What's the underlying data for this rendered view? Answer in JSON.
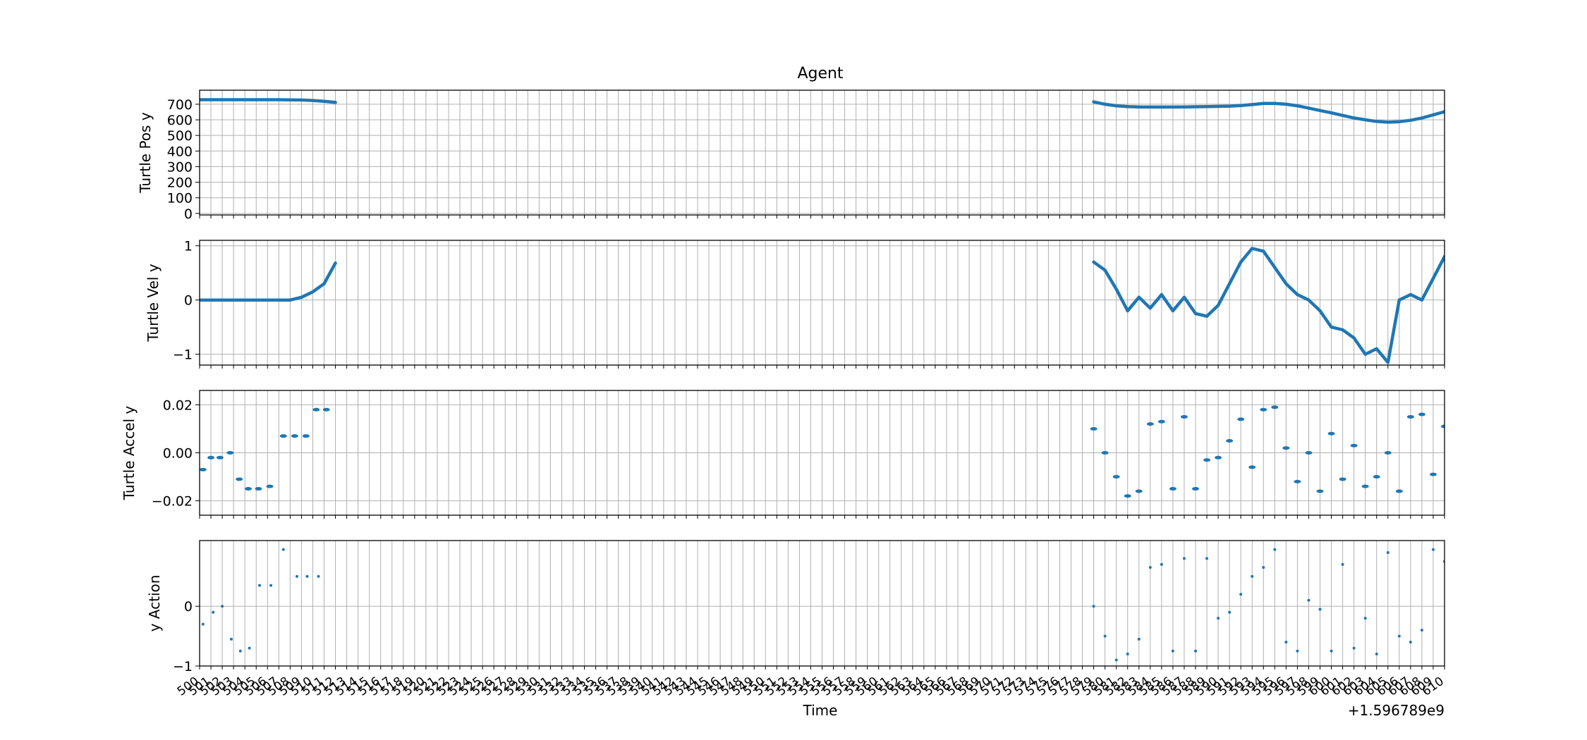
{
  "figure": {
    "title": "Agent",
    "xlabel": "Time",
    "x_offset_label": "+1.596789e9"
  },
  "chart_data": [
    {
      "type": "line",
      "ylabel": "Turtle Pos y",
      "xlim": [
        500,
        610
      ],
      "ylim": [
        -10,
        790
      ],
      "yticks": [
        0,
        100,
        200,
        300,
        400,
        500,
        600,
        700
      ],
      "ytick_labels": [
        "0",
        "100",
        "200",
        "300",
        "400",
        "500",
        "600",
        "700"
      ],
      "grid": true,
      "color": "#1f77b4",
      "segments": [
        {
          "x": [
            500,
            501,
            502,
            503,
            504,
            505,
            506,
            507,
            508,
            509,
            510,
            511,
            512
          ],
          "y": [
            729,
            729,
            729,
            729,
            729,
            729,
            729,
            729,
            728,
            727,
            724,
            719,
            712
          ]
        },
        {
          "x": [
            579,
            580,
            581,
            582,
            583,
            585,
            587,
            589,
            591,
            592,
            593,
            594,
            595,
            596,
            597,
            598,
            599,
            600,
            601,
            602,
            603,
            604,
            605,
            606,
            607,
            608,
            609,
            610
          ],
          "y": [
            715,
            700,
            690,
            685,
            683,
            682,
            683,
            685,
            688,
            692,
            698,
            705,
            705,
            700,
            690,
            675,
            660,
            645,
            628,
            612,
            600,
            590,
            585,
            588,
            597,
            612,
            632,
            652
          ]
        }
      ]
    },
    {
      "type": "line",
      "ylabel": "Turtle Vel y",
      "xlim": [
        500,
        610
      ],
      "ylim": [
        -1.2,
        1.1
      ],
      "yticks": [
        -1,
        0,
        1
      ],
      "ytick_labels": [
        "−1",
        "0",
        "1"
      ],
      "grid": true,
      "color": "#1f77b4",
      "segments": [
        {
          "x": [
            500,
            502,
            504,
            506,
            508,
            509,
            510,
            511,
            512
          ],
          "y": [
            0,
            0,
            0,
            0,
            0,
            0.05,
            0.15,
            0.3,
            0.68
          ]
        },
        {
          "x": [
            579,
            580,
            581,
            582,
            583,
            584,
            585,
            586,
            587,
            588,
            589,
            590,
            591,
            592,
            593,
            594,
            595,
            596,
            597,
            598,
            599,
            600,
            601,
            602,
            603,
            604,
            605,
            606,
            607,
            608,
            609,
            610
          ],
          "y": [
            0.7,
            0.55,
            0.2,
            -0.2,
            0.05,
            -0.15,
            0.1,
            -0.2,
            0.05,
            -0.25,
            -0.3,
            -0.1,
            0.3,
            0.7,
            0.95,
            0.9,
            0.6,
            0.3,
            0.1,
            0.0,
            -0.2,
            -0.5,
            -0.55,
            -0.7,
            -1.0,
            -0.9,
            -1.15,
            0.0,
            0.1,
            0.0,
            0.4,
            0.8
          ]
        }
      ]
    },
    {
      "type": "scatter",
      "ylabel": "Turtle Accel y",
      "xlim": [
        500,
        610
      ],
      "ylim": [
        -0.026,
        0.026
      ],
      "yticks": [
        -0.02,
        0.0,
        0.02
      ],
      "ytick_labels": [
        "−0.02",
        "0.00",
        "0.02"
      ],
      "grid": true,
      "color": "#1f77b4",
      "points": {
        "x": [
          500.3,
          501,
          501.8,
          502.7,
          503.5,
          504.3,
          505.2,
          506.2,
          507.4,
          508.4,
          509.4,
          510.3,
          511.2,
          579,
          580,
          581,
          582,
          583,
          584,
          585,
          586,
          587,
          588,
          589,
          590,
          591,
          592,
          593,
          594,
          595,
          596,
          597,
          598,
          599,
          600,
          601,
          602,
          603,
          604,
          605,
          606,
          607,
          608,
          609,
          610
        ],
        "y": [
          -0.007,
          -0.002,
          -0.002,
          0.0,
          -0.011,
          -0.015,
          -0.015,
          -0.014,
          0.007,
          0.007,
          0.007,
          0.018,
          0.018,
          0.01,
          -0.0,
          -0.01,
          -0.018,
          -0.016,
          0.012,
          0.013,
          -0.015,
          0.015,
          -0.015,
          -0.003,
          -0.002,
          0.005,
          0.014,
          -0.006,
          0.018,
          0.019,
          0.002,
          -0.012,
          0.0,
          -0.016,
          0.008,
          -0.011,
          0.003,
          -0.014,
          -0.01,
          0.0,
          -0.016,
          0.015,
          0.016,
          -0.009,
          0.011
        ]
      }
    },
    {
      "type": "scatter",
      "ylabel": "y Action",
      "xlim": [
        500,
        610
      ],
      "ylim": [
        -1,
        1.1
      ],
      "yticks": [
        -1,
        0
      ],
      "ytick_labels": [
        "−1",
        "0"
      ],
      "grid": true,
      "color": "#1f77b4",
      "points": {
        "x": [
          500.3,
          501.2,
          502,
          502.8,
          503.6,
          504.4,
          505.3,
          506.3,
          507.4,
          508.6,
          509.5,
          510.5,
          579,
          580,
          581,
          582,
          583,
          584,
          585,
          586,
          587,
          588,
          589,
          590,
          591,
          592,
          593,
          594,
          595,
          596,
          597,
          598,
          599,
          600,
          601,
          602,
          603,
          604,
          605,
          606,
          607,
          608,
          609,
          610
        ],
        "y": [
          -0.3,
          -0.1,
          0.0,
          -0.55,
          -0.75,
          -0.7,
          0.35,
          0.35,
          0.95,
          0.5,
          0.5,
          0.5,
          0.0,
          -0.5,
          -0.9,
          -0.8,
          -0.55,
          0.65,
          0.7,
          -0.75,
          0.8,
          -0.75,
          0.8,
          -0.2,
          -0.1,
          0.2,
          0.5,
          0.65,
          0.95,
          -0.6,
          -0.75,
          0.1,
          -0.05,
          -0.75,
          0.7,
          -0.7,
          -0.2,
          -0.8,
          0.9,
          -0.5,
          -0.6,
          -0.4,
          0.95,
          0.75
        ]
      }
    }
  ],
  "x_axis": {
    "tick_start": 500,
    "tick_end": 610,
    "tick_step": 1,
    "tick_labels_note": "last digits of seconds"
  }
}
